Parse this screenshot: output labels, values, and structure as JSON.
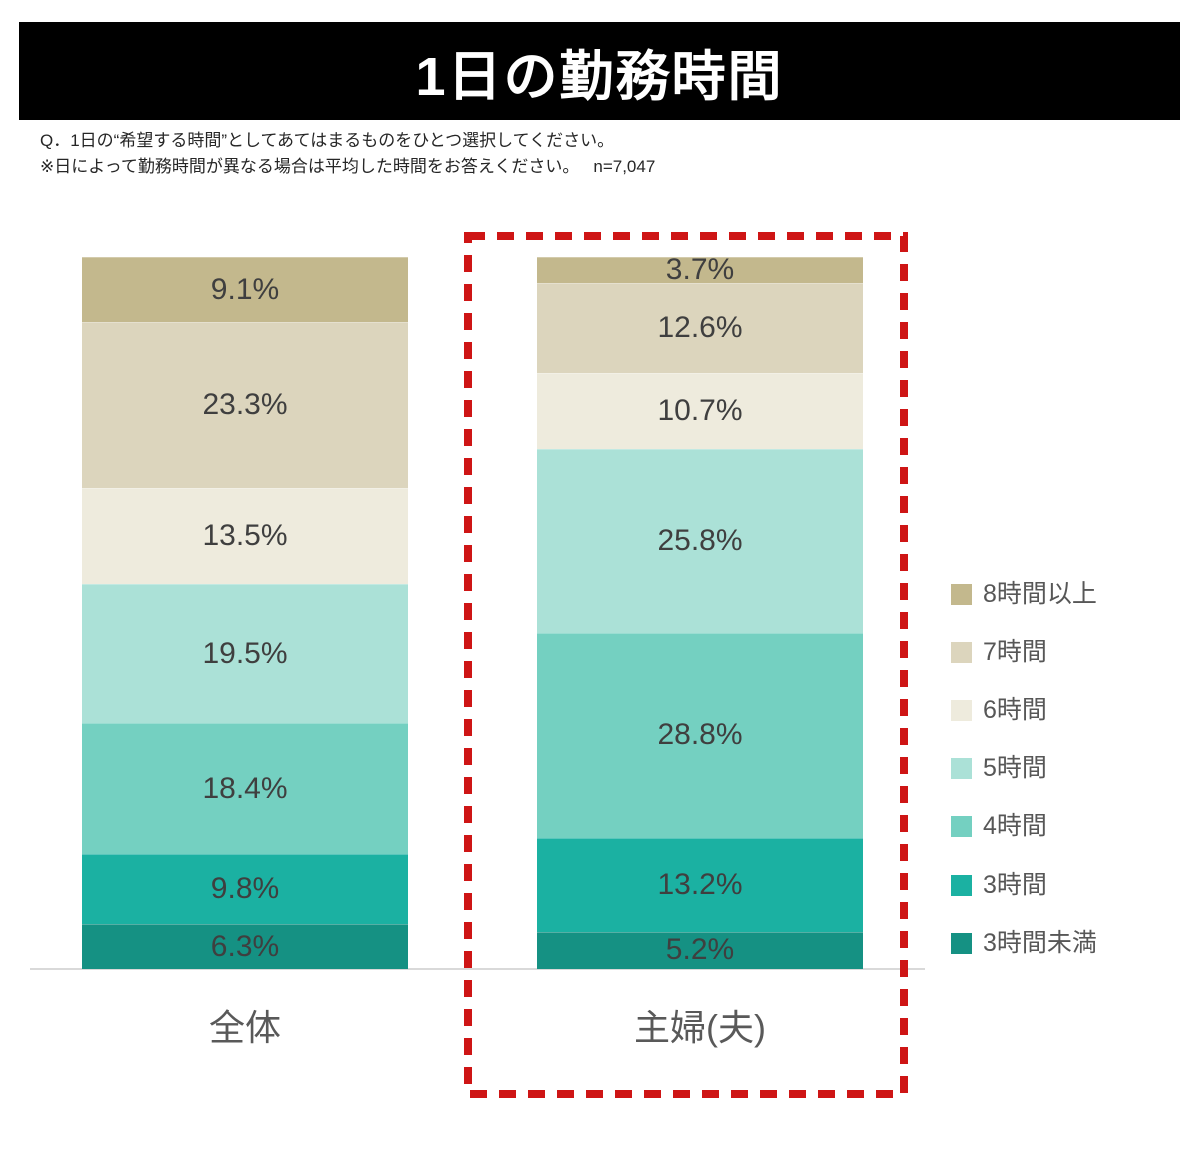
{
  "header": {
    "title": "1日の勤務時間"
  },
  "question": {
    "q_line": "Q．1日の“希望する時間”としてあてはまるものをひとつ選択してください。",
    "note_line": "※日によって勤務時間が異なる場合は平均した時間をお答えください。",
    "n_label": "n=7,047"
  },
  "chart_data": {
    "type": "bar",
    "stacked": true,
    "orientation": "vertical",
    "unit": "%",
    "categories": [
      "全体",
      "主婦(夫)"
    ],
    "series": [
      {
        "name": "8時間以上",
        "color": "#c3b88d",
        "values": [
          9.1,
          3.7
        ]
      },
      {
        "name": "7時間",
        "color": "#dcd5bd",
        "values": [
          23.3,
          12.6
        ]
      },
      {
        "name": "6時間",
        "color": "#eeebdd",
        "values": [
          13.5,
          10.7
        ]
      },
      {
        "name": "5時間",
        "color": "#abe1d7",
        "values": [
          19.5,
          25.8
        ]
      },
      {
        "name": "4時間",
        "color": "#74d0c1",
        "values": [
          18.4,
          28.8
        ]
      },
      {
        "name": "3時間",
        "color": "#1bb1a2",
        "values": [
          9.8,
          13.2
        ]
      },
      {
        "name": "3時間未満",
        "color": "#159183",
        "values": [
          6.3,
          5.2
        ]
      }
    ],
    "value_label_format": "{v}%",
    "value_label_color": "#3f3f3f",
    "legend_position": "right",
    "stack_order": "first-series-on-top",
    "highlighted_category": "主婦(夫)",
    "highlight_color": "#ce1515",
    "grid": false,
    "ylim": [
      0,
      100
    ]
  }
}
